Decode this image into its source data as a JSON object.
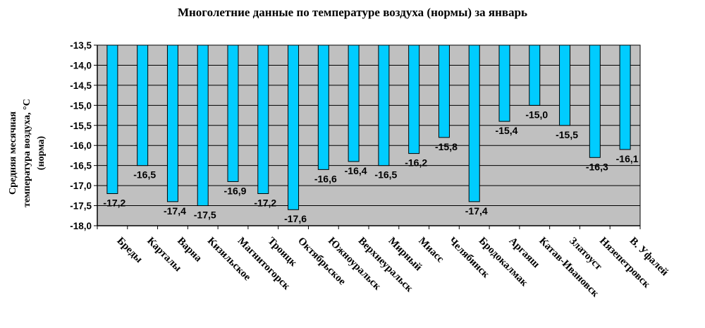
{
  "chart_data": {
    "type": "bar",
    "title": "Многолетние данные по температуре воздуха (нормы) за январь",
    "ylabel_lines": [
      "Средняя месячная",
      "температура воздуха, °C",
      "(норма)"
    ],
    "xlabel": "",
    "ylim": [
      -18.0,
      -13.5
    ],
    "yticks": [
      -13.5,
      -14.0,
      -14.5,
      -15.0,
      -15.5,
      -16.0,
      -16.5,
      -17.0,
      -17.5,
      -18.0
    ],
    "ytick_labels": [
      "-13,5",
      "-14,0",
      "-14,5",
      "-15,0",
      "-15,5",
      "-16,0",
      "-16,5",
      "-17,0",
      "-17,5",
      "-18,0"
    ],
    "baseline": -13.5,
    "grid": true,
    "legend": "none",
    "categories": [
      "Бреды",
      "Карталы",
      "Варна",
      "Кизильское",
      "Магнитогорск",
      "Троицк",
      "Октябрьское",
      "Южноуральск",
      "Верхнеуральск",
      "Мирный",
      "Миасс",
      "Челябинск",
      "Бродокалмак",
      "Аргаяш",
      "Катав-Ивановск",
      "Златоуст",
      "Нязепетровск",
      "В. Уфалей"
    ],
    "values": [
      -17.2,
      -16.5,
      -17.4,
      -17.5,
      -16.9,
      -17.2,
      -17.6,
      -16.6,
      -16.4,
      -16.5,
      -16.2,
      -15.8,
      -17.4,
      -15.4,
      -15.0,
      -15.5,
      -16.3,
      -16.1
    ],
    "value_labels": [
      "-17,2",
      "-16,5",
      "-17,4",
      "-17,5",
      "-16,9",
      "-17,2",
      "-17,6",
      "-16,6",
      "-16,4",
      "-16,5",
      "-16,2",
      "-15,8",
      "-17,4",
      "-15,4",
      "-15,0",
      "-15,5",
      "-16,3",
      "-16,1"
    ],
    "colors": {
      "bar_fill": "#00ccff",
      "bar_stroke": "#000000",
      "plot_bg": "#c0c0c0",
      "gridline": "#000000"
    }
  }
}
